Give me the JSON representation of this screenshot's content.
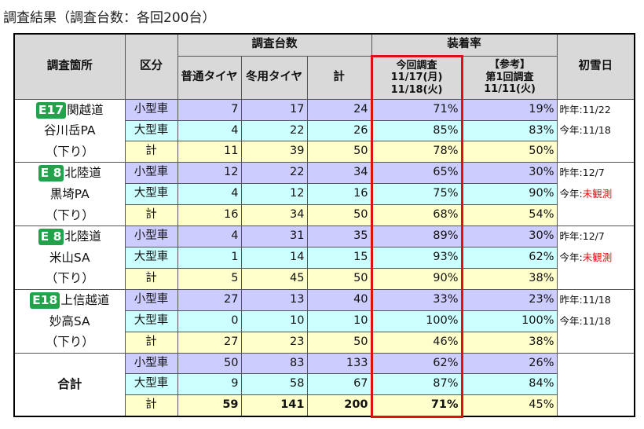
{
  "title": "調査結果（調査台数：各回200台）",
  "table": {
    "headers": {
      "location": "調査箇所",
      "category": "区分",
      "count_group": "調査台数",
      "normal": "普通タイヤ",
      "winter": "冬用タイヤ",
      "total": "計",
      "rate_group": "装着率",
      "current": [
        "今回調査",
        "11/17(月)",
        "11/18(火)"
      ],
      "reference": [
        "【参考】",
        "第1回調査",
        "11/11(火)"
      ],
      "first_snow": "初雪日"
    },
    "groups": [
      {
        "badge": "E17",
        "road": "関越道",
        "place": "谷川岳PA",
        "direction": "（下り）",
        "rows": [
          {
            "category": "小型車",
            "normal": 7,
            "winter": 17,
            "total": 24,
            "current": "71%",
            "reference": "19%"
          },
          {
            "category": "大型車",
            "normal": 4,
            "winter": 22,
            "total": 26,
            "current": "85%",
            "reference": "83%"
          },
          {
            "category": "計",
            "normal": 11,
            "winter": 39,
            "total": 50,
            "current": "78%",
            "reference": "50%"
          }
        ],
        "snow": [
          {
            "label": "昨年:",
            "date": "11/22"
          },
          {
            "label": "今年:",
            "date": "11/18"
          }
        ]
      },
      {
        "badge": "E 8",
        "road": "北陸道",
        "place": "黒埼PA",
        "direction": "（下り）",
        "rows": [
          {
            "category": "小型車",
            "normal": 12,
            "winter": 22,
            "total": 34,
            "current": "65%",
            "reference": "30%"
          },
          {
            "category": "大型車",
            "normal": 4,
            "winter": 12,
            "total": 16,
            "current": "75%",
            "reference": "90%"
          },
          {
            "category": "計",
            "normal": 16,
            "winter": 34,
            "total": 50,
            "current": "68%",
            "reference": "54%"
          }
        ],
        "snow": [
          {
            "label": "昨年:",
            "date": "12/7"
          },
          {
            "label": "今年:",
            "date": "未観測",
            "highlight": true
          }
        ]
      },
      {
        "badge": "E 8",
        "road": "北陸道",
        "place": "米山SA",
        "direction": "（下り）",
        "rows": [
          {
            "category": "小型車",
            "normal": 4,
            "winter": 31,
            "total": 35,
            "current": "89%",
            "reference": "30%"
          },
          {
            "category": "大型車",
            "normal": 1,
            "winter": 14,
            "total": 15,
            "current": "93%",
            "reference": "62%"
          },
          {
            "category": "計",
            "normal": 5,
            "winter": 45,
            "total": 50,
            "current": "90%",
            "reference": "38%"
          }
        ],
        "snow": [
          {
            "label": "昨年:",
            "date": "12/7"
          },
          {
            "label": "今年:",
            "date": "未観測",
            "highlight": true
          }
        ]
      },
      {
        "badge": "E18",
        "road": "上信越道",
        "place": "妙高SA",
        "direction": "（下り）",
        "rows": [
          {
            "category": "小型車",
            "normal": 27,
            "winter": 13,
            "total": 40,
            "current": "33%",
            "reference": "23%"
          },
          {
            "category": "大型車",
            "normal": 0,
            "winter": 10,
            "total": 10,
            "current": "100%",
            "reference": "100%"
          },
          {
            "category": "計",
            "normal": 27,
            "winter": 23,
            "total": 50,
            "current": "46%",
            "reference": "38%"
          }
        ],
        "snow": [
          {
            "label": "昨年:",
            "date": "11/18"
          },
          {
            "label": "今年:",
            "date": "11/18"
          }
        ]
      },
      {
        "place": "合計",
        "rows": [
          {
            "category": "小型車",
            "normal": 50,
            "winter": 83,
            "total": 133,
            "current": "62%",
            "reference": "26%"
          },
          {
            "category": "大型車",
            "normal": 9,
            "winter": 58,
            "total": 67,
            "current": "87%",
            "reference": "84%"
          },
          {
            "category": "計",
            "normal": 59,
            "winter": 141,
            "total": 200,
            "current": "71%",
            "reference": "45%",
            "bold": true
          }
        ],
        "snow": []
      }
    ]
  }
}
